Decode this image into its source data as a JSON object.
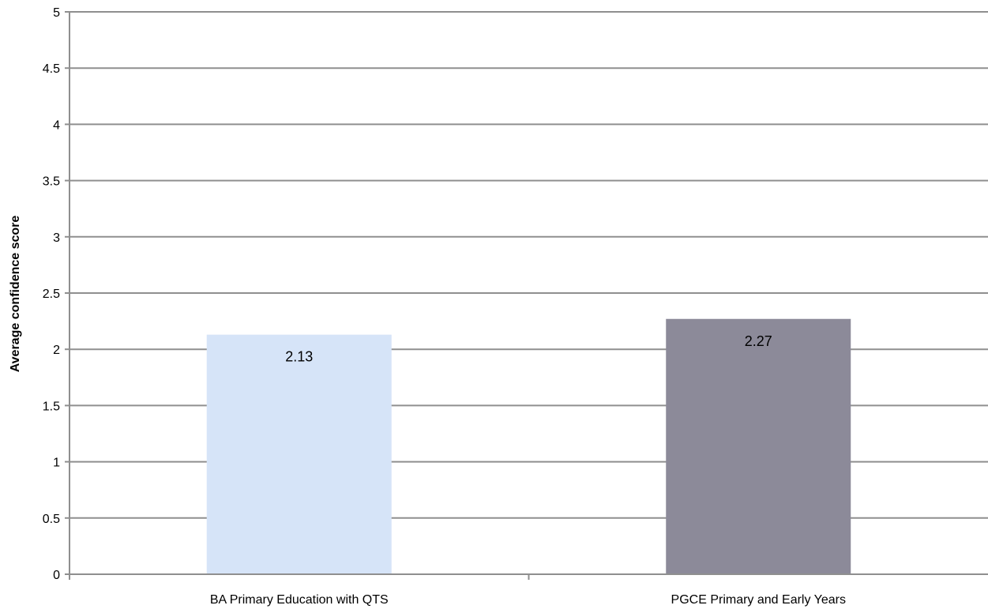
{
  "chart_data": {
    "type": "bar",
    "title": "",
    "xlabel": "",
    "ylabel": "Average confidence score",
    "categories": [
      "BA Primary Education with QTS",
      "PGCE Primary and Early Years"
    ],
    "values": [
      2.13,
      2.27
    ],
    "data_labels": [
      "2.13",
      "2.27"
    ],
    "bar_colors": [
      "#d6e4f8",
      "#8c8a99"
    ],
    "ylim": [
      0,
      5
    ],
    "yticks": [
      0,
      0.5,
      1,
      1.5,
      2,
      2.5,
      3,
      3.5,
      4,
      4.5,
      5
    ],
    "ytick_labels": [
      "0",
      "0.5",
      "1",
      "1.5",
      "2",
      "2.5",
      "3",
      "3.5",
      "4",
      "4.5",
      "5"
    ],
    "grid": "horizontal",
    "legend": "none"
  }
}
